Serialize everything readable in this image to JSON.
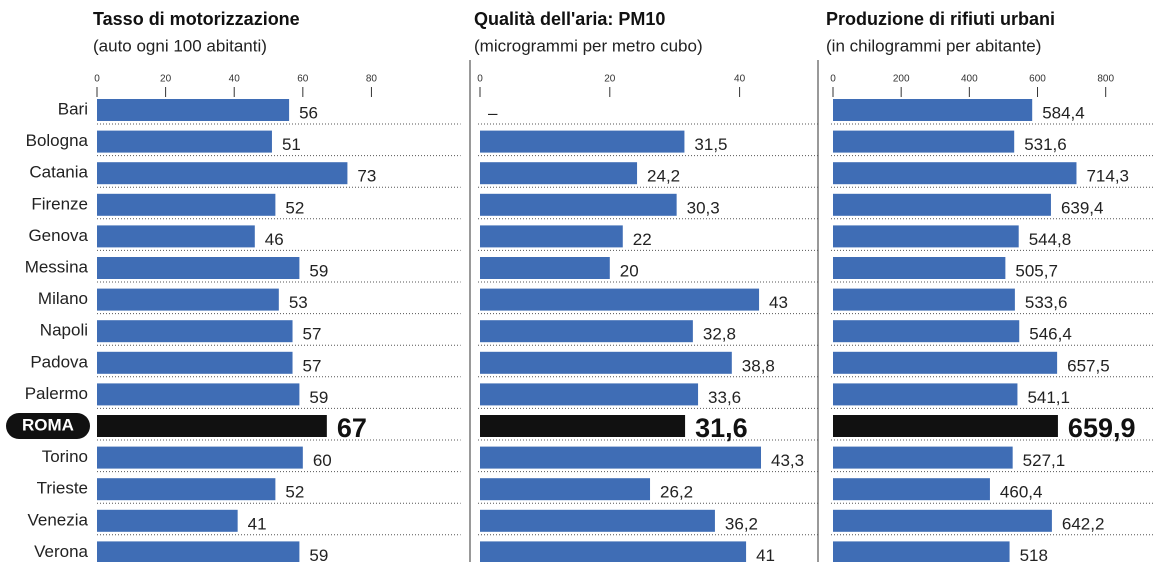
{
  "chart_data": [
    {
      "type": "bar",
      "orientation": "horizontal",
      "title": "Tasso di motorizzazione",
      "subtitle": "(auto ogni 100 abitanti)",
      "categories": [
        "Bari",
        "Bologna",
        "Catania",
        "Firenze",
        "Genova",
        "Messina",
        "Milano",
        "Napoli",
        "Padova",
        "Palermo",
        "ROMA",
        "Torino",
        "Trieste",
        "Venezia",
        "Verona"
      ],
      "values": [
        56,
        51,
        73,
        52,
        46,
        59,
        53,
        57,
        57,
        59,
        67,
        60,
        52,
        41,
        59
      ],
      "xlim": [
        0,
        92
      ],
      "xticks": [
        0,
        20,
        40,
        60,
        80
      ],
      "color": "#3f6db5",
      "highlight_color": "#111111",
      "highlight_index": 10
    },
    {
      "type": "bar",
      "orientation": "horizontal",
      "title": "Qualità dell'aria: PM10",
      "subtitle": "(microgrammi per metro cubo)",
      "values": [
        null,
        31.5,
        24.2,
        30.3,
        22,
        20,
        43,
        32.8,
        38.8,
        33.6,
        31.6,
        43.3,
        26.2,
        36.2,
        41
      ],
      "value_labels": [
        "–",
        "31,5",
        "24,2",
        "30,3",
        "22",
        "20",
        "43",
        "32,8",
        "38,8",
        "33,6",
        "31,6",
        "43,3",
        "26,2",
        "36,2",
        "41"
      ],
      "xlim": [
        0,
        49
      ],
      "xticks": [
        0,
        20,
        40
      ],
      "color": "#3f6db5",
      "highlight_color": "#111111",
      "highlight_index": 10
    },
    {
      "type": "bar",
      "orientation": "horizontal",
      "title": "Produzione di rifiuti urbani",
      "subtitle": "(in chilogrammi per abitante)",
      "values": [
        584.4,
        531.6,
        714.3,
        639.4,
        544.8,
        505.7,
        533.6,
        546.4,
        657.5,
        541.1,
        659.9,
        527.1,
        460.4,
        642.2,
        518
      ],
      "value_labels": [
        "584,4",
        "531,6",
        "714,3",
        "639,4",
        "544,8",
        "505,7",
        "533,6",
        "546,4",
        "657,5",
        "541,1",
        "659,9",
        "527,1",
        "460,4",
        "642,2",
        "518"
      ],
      "xlim": [
        0,
        930
      ],
      "xticks": [
        0,
        200,
        400,
        600,
        800
      ],
      "color": "#3f6db5",
      "highlight_color": "#111111",
      "highlight_index": 10
    }
  ]
}
